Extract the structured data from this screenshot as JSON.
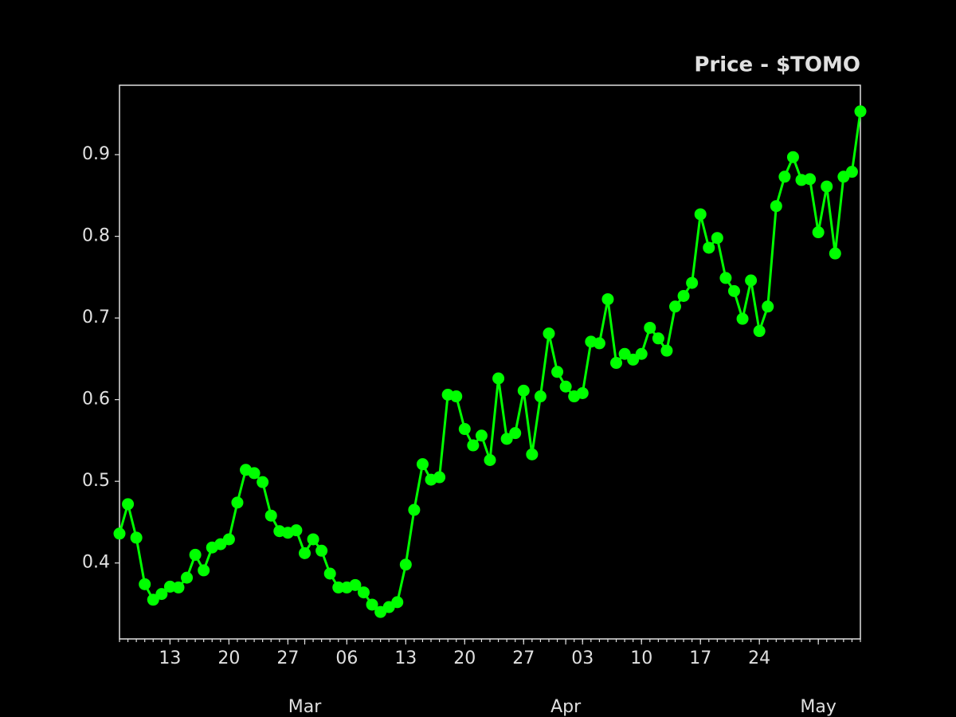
{
  "chart_data": {
    "type": "line",
    "title": "Price - $TOMO",
    "color": "#00ff00",
    "x": [
      "02-07",
      "02-08",
      "02-09",
      "02-10",
      "02-11",
      "02-12",
      "02-13",
      "02-14",
      "02-15",
      "02-16",
      "02-17",
      "02-18",
      "02-19",
      "02-20",
      "02-21",
      "02-22",
      "02-23",
      "02-24",
      "02-25",
      "02-26",
      "02-27",
      "02-28",
      "03-01",
      "03-02",
      "03-03",
      "03-04",
      "03-05",
      "03-06",
      "03-07",
      "03-08",
      "03-09",
      "03-10",
      "03-11",
      "03-12",
      "03-13",
      "03-14",
      "03-15",
      "03-16",
      "03-17",
      "03-18",
      "03-19",
      "03-20",
      "03-21",
      "03-22",
      "03-23",
      "03-24",
      "03-25",
      "03-26",
      "03-27",
      "03-28",
      "03-29",
      "03-30",
      "03-31",
      "04-01",
      "04-02",
      "04-03",
      "04-04",
      "04-05",
      "04-06",
      "04-07",
      "04-08",
      "04-09",
      "04-10",
      "04-11",
      "04-12",
      "04-13",
      "04-14",
      "04-15",
      "04-16",
      "04-17",
      "04-18",
      "04-19",
      "04-20",
      "04-21",
      "04-22",
      "04-23",
      "04-24",
      "04-25",
      "04-26",
      "04-27",
      "04-28",
      "04-29",
      "04-30",
      "05-01",
      "05-02",
      "05-03",
      "05-04",
      "05-05",
      "05-06"
    ],
    "values": [
      0.436,
      0.472,
      0.431,
      0.374,
      0.355,
      0.362,
      0.371,
      0.37,
      0.382,
      0.41,
      0.391,
      0.419,
      0.423,
      0.429,
      0.474,
      0.514,
      0.51,
      0.499,
      0.458,
      0.439,
      0.437,
      0.44,
      0.412,
      0.429,
      0.415,
      0.387,
      0.37,
      0.37,
      0.373,
      0.364,
      0.349,
      0.34,
      0.346,
      0.352,
      0.398,
      0.465,
      0.521,
      0.502,
      0.505,
      0.606,
      0.604,
      0.564,
      0.544,
      0.556,
      0.526,
      0.626,
      0.552,
      0.559,
      0.611,
      0.533,
      0.604,
      0.681,
      0.634,
      0.616,
      0.604,
      0.608,
      0.671,
      0.669,
      0.723,
      0.645,
      0.656,
      0.649,
      0.656,
      0.688,
      0.675,
      0.66,
      0.714,
      0.727,
      0.743,
      0.827,
      0.786,
      0.798,
      0.749,
      0.733,
      0.699,
      0.746,
      0.684,
      0.714,
      0.837,
      0.873,
      0.897,
      0.869,
      0.87,
      0.805,
      0.861,
      0.779,
      0.873,
      0.879,
      0.953
    ],
    "xlim": [
      "02-07",
      "05-06"
    ],
    "xticks": [
      {
        "value": "02-13",
        "label": "13"
      },
      {
        "value": "02-20",
        "label": "20"
      },
      {
        "value": "02-27",
        "label": "27"
      },
      {
        "value": "03-06",
        "label": "06"
      },
      {
        "value": "03-13",
        "label": "13"
      },
      {
        "value": "03-20",
        "label": "20"
      },
      {
        "value": "03-27",
        "label": "27"
      },
      {
        "value": "04-03",
        "label": "03"
      },
      {
        "value": "04-10",
        "label": "10"
      },
      {
        "value": "04-17",
        "label": "17"
      },
      {
        "value": "04-24",
        "label": "24"
      }
    ],
    "xticks_months": [
      {
        "value": "03-01",
        "label": "Mar"
      },
      {
        "value": "04-01",
        "label": "Apr"
      },
      {
        "value": "05-01",
        "label": "May"
      }
    ],
    "ylim": [
      0.307,
      0.985
    ],
    "yticks": [
      0.4,
      0.5,
      0.6,
      0.7,
      0.8,
      0.9
    ]
  }
}
